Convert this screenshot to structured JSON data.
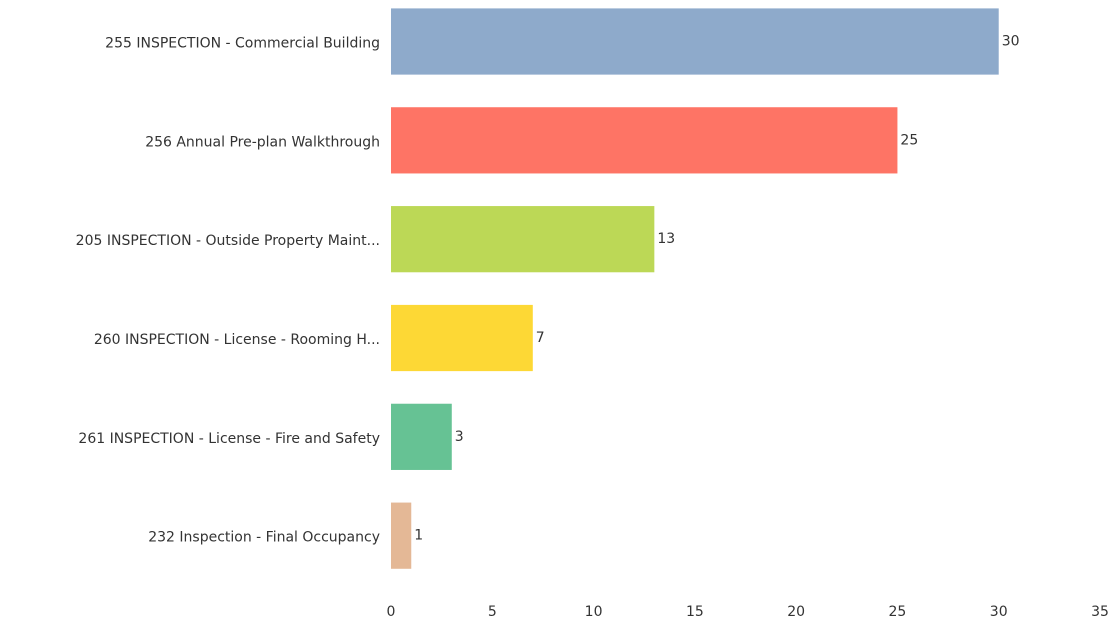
{
  "chart_data": {
    "type": "hbar",
    "categories": [
      "255 INSPECTION - Commercial Building",
      "256 Annual Pre-plan Walkthrough",
      "205 INSPECTION - Outside Property Maint...",
      "260 INSPECTION - License - Rooming H...",
      "261 INSPECTION - License - Fire and Safety",
      "232 Inspection - Final Occupancy"
    ],
    "values": [
      30,
      25,
      13,
      7,
      3,
      1
    ],
    "colors": [
      "#8eaacb",
      "#fe7465",
      "#bcd856",
      "#fdd835",
      "#66c294",
      "#e4b896"
    ],
    "xlim": [
      0,
      35
    ],
    "xticks": [
      0,
      5,
      10,
      15,
      20,
      25,
      30,
      35
    ],
    "grid": false
  }
}
